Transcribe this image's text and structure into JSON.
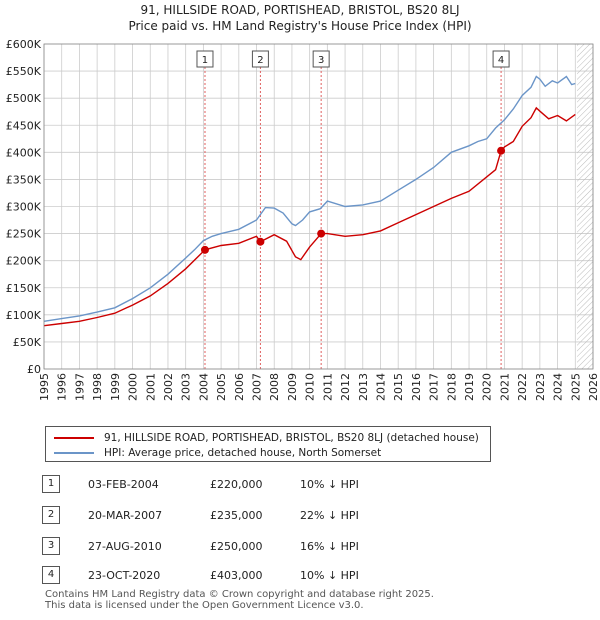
{
  "chart_title_line1": "91, HILLSIDE ROAD, PORTISHEAD, BRISTOL, BS20 8LJ",
  "chart_title_line2": "Price paid vs. HM Land Registry's House Price Index (HPI)",
  "legend": {
    "series1_label": "91, HILLSIDE ROAD, PORTISHEAD, BRISTOL, BS20 8LJ (detached house)",
    "series2_label": "HPI: Average price, detached house, North Somerset"
  },
  "colors": {
    "property": "#cc0000",
    "hpi": "#6b95c8",
    "marker_line": "#e06060",
    "grid": "#cccccc",
    "future_hatch": "#bbbbbb"
  },
  "transactions": [
    {
      "num": "1",
      "date": "03-FEB-2004",
      "price": "£220,000",
      "hpi": "10% ↓ HPI"
    },
    {
      "num": "2",
      "date": "20-MAR-2007",
      "price": "£235,000",
      "hpi": "22% ↓ HPI"
    },
    {
      "num": "3",
      "date": "27-AUG-2010",
      "price": "£250,000",
      "hpi": "16% ↓ HPI"
    },
    {
      "num": "4",
      "date": "23-OCT-2020",
      "price": "£403,000",
      "hpi": "10% ↓ HPI"
    }
  ],
  "footer_line1": "Contains HM Land Registry data © Crown copyright and database right 2025.",
  "footer_line2": "This data is licensed under the Open Government Licence v3.0.",
  "chart_data": {
    "type": "line",
    "title": "Price paid vs. HM Land Registry's House Price Index (HPI)",
    "xlabel": "",
    "ylabel": "",
    "xlim": [
      1995,
      2026
    ],
    "ylim": [
      0,
      600000
    ],
    "x_ticks": [
      "1995",
      "1996",
      "1997",
      "1998",
      "1999",
      "2000",
      "2001",
      "2002",
      "2003",
      "2004",
      "2005",
      "2006",
      "2007",
      "2008",
      "2009",
      "2010",
      "2011",
      "2012",
      "2013",
      "2014",
      "2015",
      "2016",
      "2017",
      "2018",
      "2019",
      "2020",
      "2021",
      "2022",
      "2023",
      "2024",
      "2025",
      "2026"
    ],
    "y_ticks": [
      {
        "value": 0,
        "label": "£0"
      },
      {
        "value": 50000,
        "label": "£50K"
      },
      {
        "value": 100000,
        "label": "£100K"
      },
      {
        "value": 150000,
        "label": "£150K"
      },
      {
        "value": 200000,
        "label": "£200K"
      },
      {
        "value": 250000,
        "label": "£250K"
      },
      {
        "value": 300000,
        "label": "£300K"
      },
      {
        "value": 350000,
        "label": "£350K"
      },
      {
        "value": 400000,
        "label": "£400K"
      },
      {
        "value": 450000,
        "label": "£450K"
      },
      {
        "value": 500000,
        "label": "£500K"
      },
      {
        "value": 550000,
        "label": "£550K"
      },
      {
        "value": 600000,
        "label": "£600K"
      }
    ],
    "future_start": 2025.1,
    "series": [
      {
        "name": "HPI: Average price, detached house, North Somerset",
        "x": [
          1995,
          1996,
          1997,
          1998,
          1999,
          2000,
          2001,
          2002,
          2003,
          2003.5,
          2004,
          2004.5,
          2005,
          2006,
          2007,
          2007.5,
          2008,
          2008.5,
          2009,
          2009.2,
          2009.6,
          2010,
          2010.6,
          2011,
          2012,
          2013,
          2014,
          2015,
          2016,
          2017,
          2018,
          2019,
          2019.5,
          2020,
          2020.5,
          2021,
          2021.5,
          2022,
          2022.5,
          2022.8,
          2023,
          2023.3,
          2023.7,
          2024,
          2024.5,
          2024.8,
          2025
        ],
        "values": [
          88000,
          93000,
          98000,
          105000,
          113000,
          130000,
          150000,
          175000,
          205000,
          220000,
          237000,
          245000,
          250000,
          258000,
          275000,
          298000,
          297000,
          288000,
          268000,
          265000,
          275000,
          290000,
          296000,
          310000,
          300000,
          303000,
          310000,
          330000,
          350000,
          372000,
          400000,
          412000,
          420000,
          425000,
          445000,
          460000,
          480000,
          505000,
          520000,
          540000,
          535000,
          522000,
          532000,
          528000,
          540000,
          525000,
          527000
        ]
      },
      {
        "name": "91, HILLSIDE ROAD, PORTISHEAD, BRISTOL, BS20 8LJ (detached house)",
        "x": [
          1995,
          1996,
          1997,
          1998,
          1999,
          2000,
          2001,
          2002,
          2003,
          2004.09,
          2005,
          2006,
          2007,
          2007.22,
          2008,
          2008.7,
          2009.2,
          2009.5,
          2010,
          2010.65,
          2011,
          2012,
          2013,
          2014,
          2015,
          2016,
          2017,
          2018,
          2019,
          2020.5,
          2020.81,
          2021,
          2021.5,
          2022,
          2022.5,
          2022.8,
          2023,
          2023.5,
          2024,
          2024.5,
          2025
        ],
        "values": [
          80000,
          84000,
          88000,
          95000,
          103000,
          118000,
          135000,
          158000,
          185000,
          220000,
          228000,
          232000,
          245000,
          235000,
          248000,
          236000,
          207000,
          202000,
          225000,
          250000,
          250000,
          245000,
          248000,
          255000,
          270000,
          285000,
          300000,
          315000,
          328000,
          368000,
          403000,
          410000,
          420000,
          448000,
          464000,
          482000,
          476000,
          462000,
          468000,
          458000,
          470000
        ]
      }
    ],
    "sale_points": [
      {
        "label": "1",
        "x": 2004.09,
        "value": 220000
      },
      {
        "label": "2",
        "x": 2007.22,
        "value": 235000
      },
      {
        "label": "3",
        "x": 2010.65,
        "value": 250000
      },
      {
        "label": "4",
        "x": 2020.81,
        "value": 403000
      }
    ]
  }
}
